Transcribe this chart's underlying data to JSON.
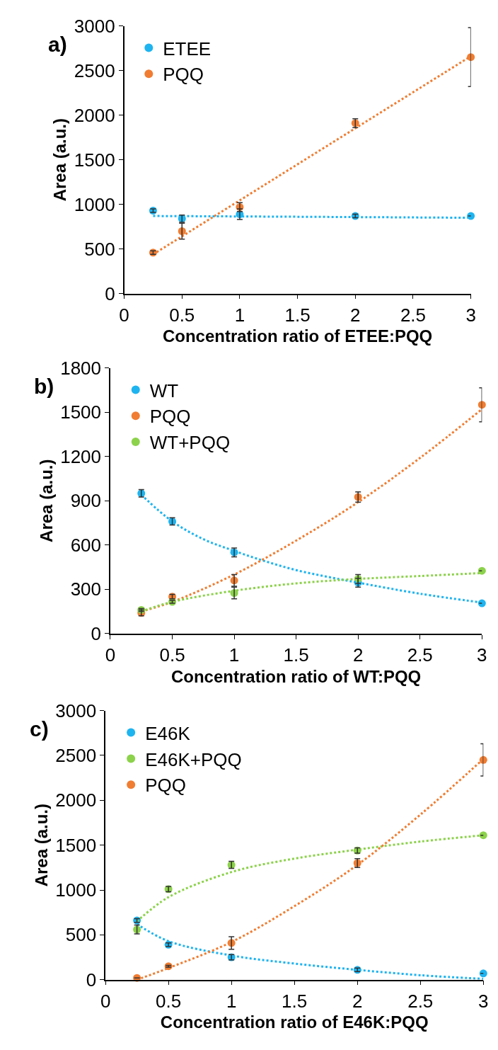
{
  "chart_data": [
    {
      "type": "scatter",
      "title": "a)",
      "xlabel": "Concentration ratio of ETEE:PQQ",
      "ylabel": "Area (a.u.)",
      "x": [
        0.25,
        0.5,
        1,
        2,
        3
      ],
      "xlim": [
        0,
        3
      ],
      "xticks": [
        0,
        0.5,
        1,
        1.5,
        2,
        2.5,
        3
      ],
      "ylim": [
        0,
        3000
      ],
      "yticks": [
        0,
        500,
        1000,
        1500,
        2000,
        2500,
        3000
      ],
      "legend": "top left",
      "marker": "circle",
      "series": [
        {
          "name": "ETEE",
          "color": "#1eb4f0",
          "values": [
            930,
            840,
            890,
            870,
            870
          ],
          "errors": [
            20,
            40,
            60,
            20,
            null
          ]
        },
        {
          "name": "PQQ",
          "color": "#f07d32",
          "values": [
            460,
            700,
            970,
            1910,
            2650
          ],
          "errors": [
            20,
            90,
            50,
            50,
            330
          ]
        },
        {
          "type": "line",
          "color": "#1eb4f0",
          "line_style": "dotted",
          "marker": "none",
          "x": [
            0.25,
            1,
            2,
            3
          ],
          "values": [
            870,
            865,
            858,
            850
          ]
        },
        {
          "type": "line",
          "color": "#f07d32",
          "line_style": "dotted",
          "marker": "none",
          "x": [
            0.25,
            3
          ],
          "values": [
            440,
            2660
          ]
        }
      ]
    },
    {
      "type": "scatter",
      "title": "b)",
      "xlabel": "Concentration ratio of WT:PQQ",
      "ylabel": "Area (a.u.)",
      "x": [
        0.25,
        0.5,
        1,
        2,
        3
      ],
      "xlim": [
        0,
        3
      ],
      "xticks": [
        0,
        0.5,
        1,
        1.5,
        2,
        2.5,
        3
      ],
      "ylim": [
        0,
        1800
      ],
      "yticks": [
        0,
        300,
        600,
        900,
        1200,
        1500,
        1800
      ],
      "legend": "top left",
      "marker": "circle",
      "series": [
        {
          "name": "WT",
          "color": "#1eb4f0",
          "values": [
            950,
            760,
            550,
            345,
            205
          ],
          "errors": [
            25,
            25,
            30,
            30,
            null
          ]
        },
        {
          "name": "PQQ",
          "color": "#f07d32",
          "values": [
            140,
            250,
            360,
            925,
            1550
          ],
          "errors": [
            20,
            15,
            40,
            35,
            115
          ]
        },
        {
          "name": "WT+PQQ",
          "color": "#8cd24b",
          "values": [
            160,
            215,
            275,
            370,
            425
          ],
          "errors": [
            10,
            10,
            40,
            30,
            null
          ]
        },
        {
          "type": "line",
          "color": "#1eb4f0",
          "line_style": "dotted",
          "marker": "none",
          "x": [
            0.25,
            0.5,
            0.75,
            1,
            1.25,
            1.5,
            1.75,
            2,
            2.5,
            3
          ],
          "values": [
            940,
            760,
            640,
            560,
            490,
            430,
            385,
            345,
            270,
            210
          ]
        },
        {
          "type": "line",
          "color": "#f07d32",
          "line_style": "dotted",
          "marker": "none",
          "x": [
            0.25,
            0.5,
            1,
            1.5,
            2,
            2.5,
            3
          ],
          "values": [
            150,
            215,
            400,
            630,
            890,
            1190,
            1520
          ]
        },
        {
          "type": "line",
          "color": "#8cd24b",
          "line_style": "dotted",
          "marker": "none",
          "x": [
            0.25,
            0.5,
            1,
            1.5,
            2,
            2.5,
            3
          ],
          "values": [
            150,
            215,
            290,
            340,
            370,
            390,
            410
          ]
        }
      ]
    },
    {
      "type": "scatter",
      "title": "c)",
      "xlabel": "Concentration ratio of E46K:PQQ",
      "ylabel": "Area (a.u.)",
      "x": [
        0.25,
        0.5,
        1,
        2,
        3
      ],
      "xlim": [
        0,
        3
      ],
      "xticks": [
        0,
        0.5,
        1,
        1.5,
        2,
        2.5,
        3
      ],
      "ylim": [
        0,
        3000
      ],
      "yticks": [
        0,
        500,
        1000,
        1500,
        2000,
        2500,
        3000
      ],
      "legend": "top left",
      "marker": "circle",
      "series": [
        {
          "name": "E46K",
          "color": "#1eb4f0",
          "values": [
            660,
            390,
            250,
            110,
            70
          ],
          "errors": [
            20,
            20,
            30,
            20,
            null
          ]
        },
        {
          "name": "E46K+PQQ",
          "color": "#8cd24b",
          "values": [
            560,
            1010,
            1280,
            1440,
            1610
          ],
          "errors": [
            50,
            30,
            40,
            30,
            null
          ]
        },
        {
          "name": "PQQ",
          "color": "#f07d32",
          "values": [
            20,
            150,
            410,
            1300,
            2450
          ],
          "errors": [
            null,
            10,
            70,
            50,
            180
          ]
        },
        {
          "type": "line",
          "color": "#1eb4f0",
          "line_style": "dotted",
          "marker": "none",
          "x": [
            0.25,
            0.5,
            1,
            1.5,
            2,
            2.5,
            3
          ],
          "values": [
            620,
            430,
            270,
            180,
            110,
            50,
            10
          ]
        },
        {
          "type": "line",
          "color": "#8cd24b",
          "line_style": "dotted",
          "marker": "none",
          "x": [
            0.25,
            0.5,
            1,
            1.5,
            2,
            2.5,
            3
          ],
          "values": [
            650,
            920,
            1200,
            1350,
            1450,
            1540,
            1610
          ]
        },
        {
          "type": "line",
          "color": "#f07d32",
          "line_style": "dotted",
          "marker": "none",
          "x": [
            0.25,
            0.5,
            1,
            1.5,
            2,
            2.5,
            3
          ],
          "values": [
            0,
            130,
            420,
            820,
            1280,
            1840,
            2460
          ]
        }
      ]
    }
  ]
}
